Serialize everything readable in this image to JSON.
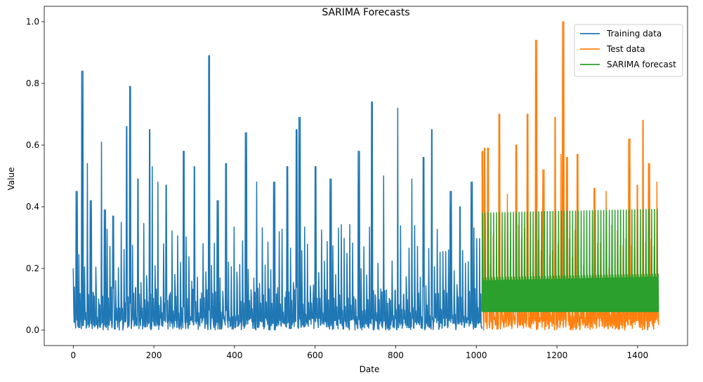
{
  "chart_data": {
    "type": "line",
    "title": "SARIMA Forecasts",
    "xlabel": "Date",
    "ylabel": "Value",
    "xlim": [
      -72,
      1524
    ],
    "ylim": [
      -0.05,
      1.05
    ],
    "x_ticks": [
      0,
      200,
      400,
      600,
      800,
      1000,
      1200,
      1400
    ],
    "x_tick_labels": [
      "0",
      "200",
      "400",
      "600",
      "800",
      "1000",
      "1200",
      "1400"
    ],
    "y_ticks": [
      0.0,
      0.2,
      0.4,
      0.6,
      0.8,
      1.0
    ],
    "y_tick_labels": [
      "0.0",
      "0.2",
      "0.4",
      "0.6",
      "0.8",
      "1.0"
    ],
    "grid": false,
    "legend": "upper-right",
    "series": [
      {
        "name": "Training data",
        "color": "#1f77b4",
        "x_range": [
          0,
          1014
        ],
        "period": 7,
        "peaks": [
          [
            0,
            0.2
          ],
          [
            10,
            0.45
          ],
          [
            24,
            0.84
          ],
          [
            35,
            0.54
          ],
          [
            45,
            0.42
          ],
          [
            70,
            0.61
          ],
          [
            80,
            0.39
          ],
          [
            100,
            0.37
          ],
          [
            132,
            0.66
          ],
          [
            142,
            0.79
          ],
          [
            160,
            0.49
          ],
          [
            190,
            0.65
          ],
          [
            196,
            0.53
          ],
          [
            210,
            0.48
          ],
          [
            230,
            0.47
          ],
          [
            275,
            0.58
          ],
          [
            300,
            0.53
          ],
          [
            338,
            0.89
          ],
          [
            360,
            0.42
          ],
          [
            380,
            0.54
          ],
          [
            430,
            0.64
          ],
          [
            455,
            0.48
          ],
          [
            500,
            0.48
          ],
          [
            530,
            0.53
          ],
          [
            555,
            0.65
          ],
          [
            563,
            0.69
          ],
          [
            600,
            0.53
          ],
          [
            640,
            0.49
          ],
          [
            710,
            0.58
          ],
          [
            740,
            0.74
          ],
          [
            770,
            0.5
          ],
          [
            805,
            0.72
          ],
          [
            840,
            0.49
          ],
          [
            870,
            0.56
          ],
          [
            890,
            0.65
          ],
          [
            935,
            0.45
          ],
          [
            960,
            0.4
          ],
          [
            990,
            0.48
          ]
        ]
      },
      {
        "name": "Test data",
        "color": "#ff7f0e",
        "x_range": [
          1014,
          1452
        ],
        "period": 7,
        "peaks": [
          [
            1016,
            0.58
          ],
          [
            1020,
            0.59
          ],
          [
            1030,
            0.59
          ],
          [
            1058,
            0.7
          ],
          [
            1077,
            0.44
          ],
          [
            1100,
            0.6
          ],
          [
            1128,
            0.7
          ],
          [
            1150,
            0.94
          ],
          [
            1165,
            0.52
          ],
          [
            1195,
            0.69
          ],
          [
            1210,
            0.57
          ],
          [
            1214,
            1.0
          ],
          [
            1226,
            0.56
          ],
          [
            1250,
            0.57
          ],
          [
            1292,
            0.46
          ],
          [
            1322,
            0.45
          ],
          [
            1381,
            0.62
          ],
          [
            1400,
            0.47
          ],
          [
            1414,
            0.68
          ],
          [
            1430,
            0.54
          ],
          [
            1448,
            0.48
          ]
        ]
      },
      {
        "name": "SARIMA forecast",
        "color": "#2ca02c",
        "x_range": [
          1014,
          1452
        ],
        "period": 7,
        "cycle": [
          0.06,
          0.38,
          0.06,
          0.17,
          0.06,
          0.16,
          0.06
        ],
        "cycle_growth": 0.012
      }
    ]
  }
}
